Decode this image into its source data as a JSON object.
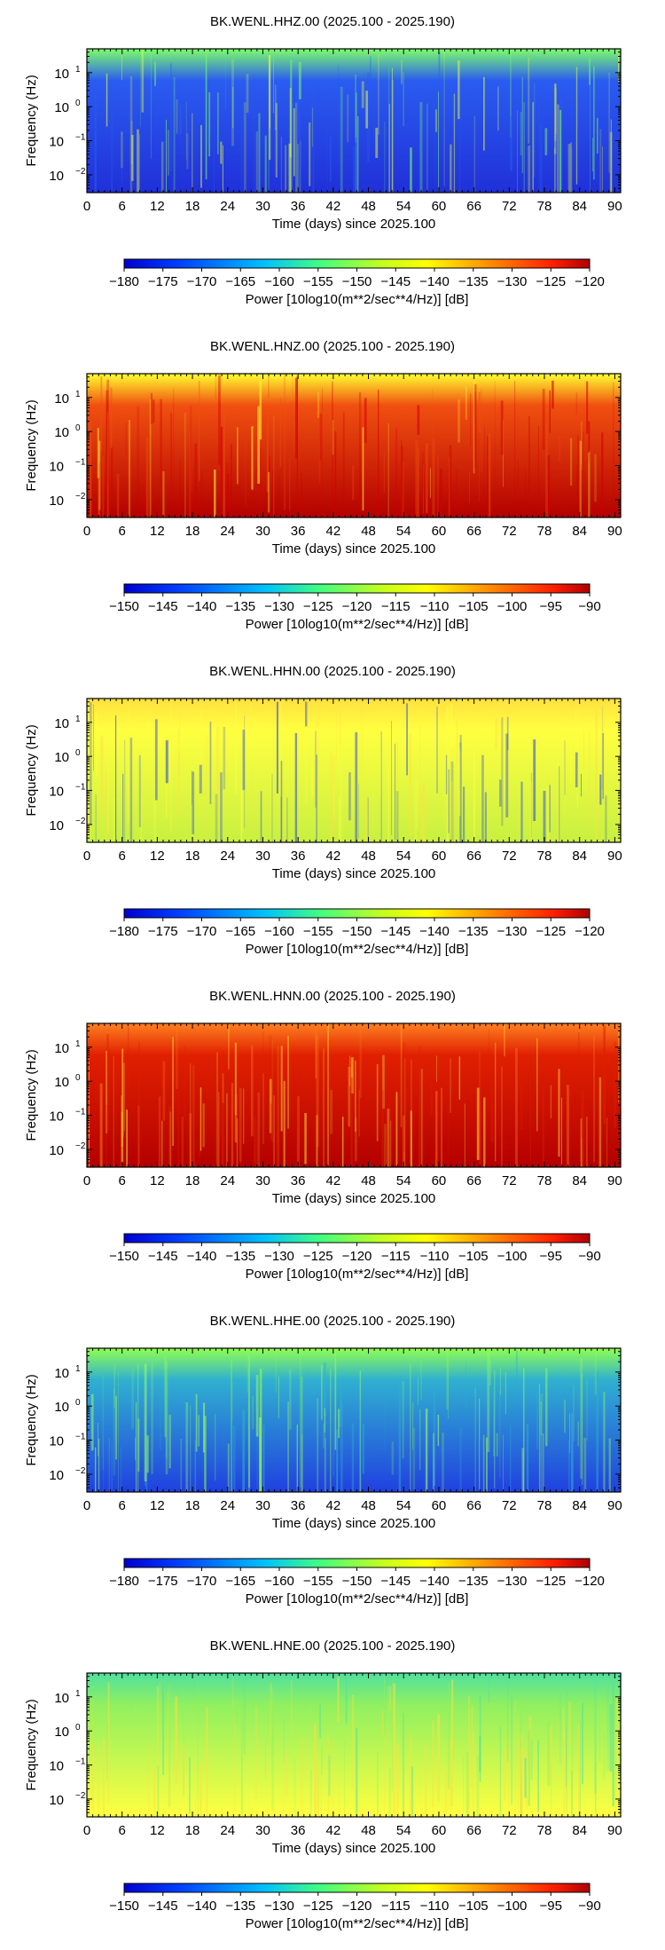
{
  "chart_data": [
    {
      "type": "heatmap",
      "title": "BK.WENL.HHZ.00 (2025.100 - 2025.190)",
      "xlabel": "Time (days) since 2025.100",
      "ylabel": "Frequency (Hz)",
      "xlim": [
        0,
        91
      ],
      "x_ticks": [
        "0",
        "6",
        "12",
        "18",
        "24",
        "30",
        "36",
        "42",
        "48",
        "54",
        "60",
        "66",
        "72",
        "78",
        "84",
        "90"
      ],
      "y_scale": "log",
      "ylim": [
        0.003,
        50
      ],
      "y_ticks": [
        {
          "base": "10",
          "exp": "1"
        },
        {
          "base": "10",
          "exp": "0"
        },
        {
          "base": "10",
          "exp": "−1"
        },
        {
          "base": "10",
          "exp": "−2"
        }
      ],
      "colorbar": {
        "label": "Power [10log10(m**2/sec**4/Hz)] [dB]",
        "min": -180,
        "max": -120,
        "ticks": [
          "−180",
          "−175",
          "−170",
          "−165",
          "−160",
          "−155",
          "−150",
          "−145",
          "−140",
          "−135",
          "−130",
          "−125",
          "−120"
        ]
      },
      "colors": {
        "top": "#7cff6a",
        "mid": "#2a5cf0",
        "bottom": "#2030d8",
        "accent": "#e8ff40"
      }
    },
    {
      "type": "heatmap",
      "title": "BK.WENL.HNZ.00 (2025.100 - 2025.190)",
      "xlabel": "Time (days) since 2025.100",
      "ylabel": "Frequency (Hz)",
      "xlim": [
        0,
        91
      ],
      "x_ticks": [
        "0",
        "6",
        "12",
        "18",
        "24",
        "30",
        "36",
        "42",
        "48",
        "54",
        "60",
        "66",
        "72",
        "78",
        "84",
        "90"
      ],
      "y_scale": "log",
      "ylim": [
        0.003,
        50
      ],
      "y_ticks": [
        {
          "base": "10",
          "exp": "1"
        },
        {
          "base": "10",
          "exp": "0"
        },
        {
          "base": "10",
          "exp": "−1"
        },
        {
          "base": "10",
          "exp": "−2"
        }
      ],
      "colorbar": {
        "label": "Power [10log10(m**2/sec**4/Hz)] [dB]",
        "min": -150,
        "max": -90,
        "ticks": [
          "−150",
          "−145",
          "−140",
          "−135",
          "−130",
          "−125",
          "−120",
          "−115",
          "−110",
          "−105",
          "−100",
          "−95",
          "−90"
        ]
      },
      "colors": {
        "top": "#ffff30",
        "mid": "#f05010",
        "bottom": "#b40000",
        "accent": "#d00000"
      }
    },
    {
      "type": "heatmap",
      "title": "BK.WENL.HHN.00 (2025.100 - 2025.190)",
      "xlabel": "Time (days) since 2025.100",
      "ylabel": "Frequency (Hz)",
      "xlim": [
        0,
        91
      ],
      "x_ticks": [
        "0",
        "6",
        "12",
        "18",
        "24",
        "30",
        "36",
        "42",
        "48",
        "54",
        "60",
        "66",
        "72",
        "78",
        "84",
        "90"
      ],
      "y_scale": "log",
      "ylim": [
        0.003,
        50
      ],
      "y_ticks": [
        {
          "base": "10",
          "exp": "1"
        },
        {
          "base": "10",
          "exp": "0"
        },
        {
          "base": "10",
          "exp": "−1"
        },
        {
          "base": "10",
          "exp": "−2"
        }
      ],
      "colorbar": {
        "label": "Power [10log10(m**2/sec**4/Hz)] [dB]",
        "min": -180,
        "max": -120,
        "ticks": [
          "−180",
          "−175",
          "−170",
          "−165",
          "−160",
          "−155",
          "−150",
          "−145",
          "−140",
          "−135",
          "−130",
          "−125",
          "−120"
        ]
      },
      "colors": {
        "top": "#ffe040",
        "mid": "#ffff40",
        "bottom": "#c8f040",
        "accent": "#2040e0"
      }
    },
    {
      "type": "heatmap",
      "title": "BK.WENL.HNN.00 (2025.100 - 2025.190)",
      "xlabel": "Time (days) since 2025.100",
      "ylabel": "Frequency (Hz)",
      "xlim": [
        0,
        91
      ],
      "x_ticks": [
        "0",
        "6",
        "12",
        "18",
        "24",
        "30",
        "36",
        "42",
        "48",
        "54",
        "60",
        "66",
        "72",
        "78",
        "84",
        "90"
      ],
      "y_scale": "log",
      "ylim": [
        0.003,
        50
      ],
      "y_ticks": [
        {
          "base": "10",
          "exp": "1"
        },
        {
          "base": "10",
          "exp": "0"
        },
        {
          "base": "10",
          "exp": "−1"
        },
        {
          "base": "10",
          "exp": "−2"
        }
      ],
      "colorbar": {
        "label": "Power [10log10(m**2/sec**4/Hz)] [dB]",
        "min": -150,
        "max": -90,
        "ticks": [
          "−150",
          "−145",
          "−140",
          "−135",
          "−130",
          "−125",
          "−120",
          "−115",
          "−110",
          "−105",
          "−100",
          "−95",
          "−90"
        ]
      },
      "colors": {
        "top": "#ff8020",
        "mid": "#e02000",
        "bottom": "#b40000",
        "accent": "#ffff40"
      }
    },
    {
      "type": "heatmap",
      "title": "BK.WENL.HHE.00 (2025.100 - 2025.190)",
      "xlabel": "Time (days) since 2025.100",
      "ylabel": "Frequency (Hz)",
      "xlim": [
        0,
        91
      ],
      "x_ticks": [
        "0",
        "6",
        "12",
        "18",
        "24",
        "30",
        "36",
        "42",
        "48",
        "54",
        "60",
        "66",
        "72",
        "78",
        "84",
        "90"
      ],
      "y_scale": "log",
      "ylim": [
        0.003,
        50
      ],
      "y_ticks": [
        {
          "base": "10",
          "exp": "1"
        },
        {
          "base": "10",
          "exp": "0"
        },
        {
          "base": "10",
          "exp": "−1"
        },
        {
          "base": "10",
          "exp": "−2"
        }
      ],
      "colorbar": {
        "label": "Power [10log10(m**2/sec**4/Hz)] [dB]",
        "min": -180,
        "max": -120,
        "ticks": [
          "−180",
          "−175",
          "−170",
          "−165",
          "−160",
          "−155",
          "−150",
          "−145",
          "−140",
          "−135",
          "−130",
          "−125",
          "−120"
        ]
      },
      "colors": {
        "top": "#90ff50",
        "mid": "#30b0d0",
        "bottom": "#2040e0",
        "accent": "#a0ff60"
      }
    },
    {
      "type": "heatmap",
      "title": "BK.WENL.HNE.00 (2025.100 - 2025.190)",
      "xlabel": "Time (days) since 2025.100",
      "ylabel": "Frequency (Hz)",
      "xlim": [
        0,
        91
      ],
      "x_ticks": [
        "0",
        "6",
        "12",
        "18",
        "24",
        "30",
        "36",
        "42",
        "48",
        "54",
        "60",
        "66",
        "72",
        "78",
        "84",
        "90"
      ],
      "y_scale": "log",
      "ylim": [
        0.003,
        50
      ],
      "y_ticks": [
        {
          "base": "10",
          "exp": "1"
        },
        {
          "base": "10",
          "exp": "0"
        },
        {
          "base": "10",
          "exp": "−1"
        },
        {
          "base": "10",
          "exp": "−2"
        }
      ],
      "colorbar": {
        "label": "Power [10log10(m**2/sec**4/Hz)] [dB]",
        "min": -150,
        "max": -90,
        "ticks": [
          "−150",
          "−145",
          "−140",
          "−135",
          "−130",
          "−125",
          "−120",
          "−115",
          "−110",
          "−105",
          "−100",
          "−95",
          "−90"
        ]
      },
      "colors": {
        "top": "#50e0a0",
        "mid": "#90f060",
        "bottom": "#ffff40",
        "accent": "#ffe040"
      }
    }
  ]
}
